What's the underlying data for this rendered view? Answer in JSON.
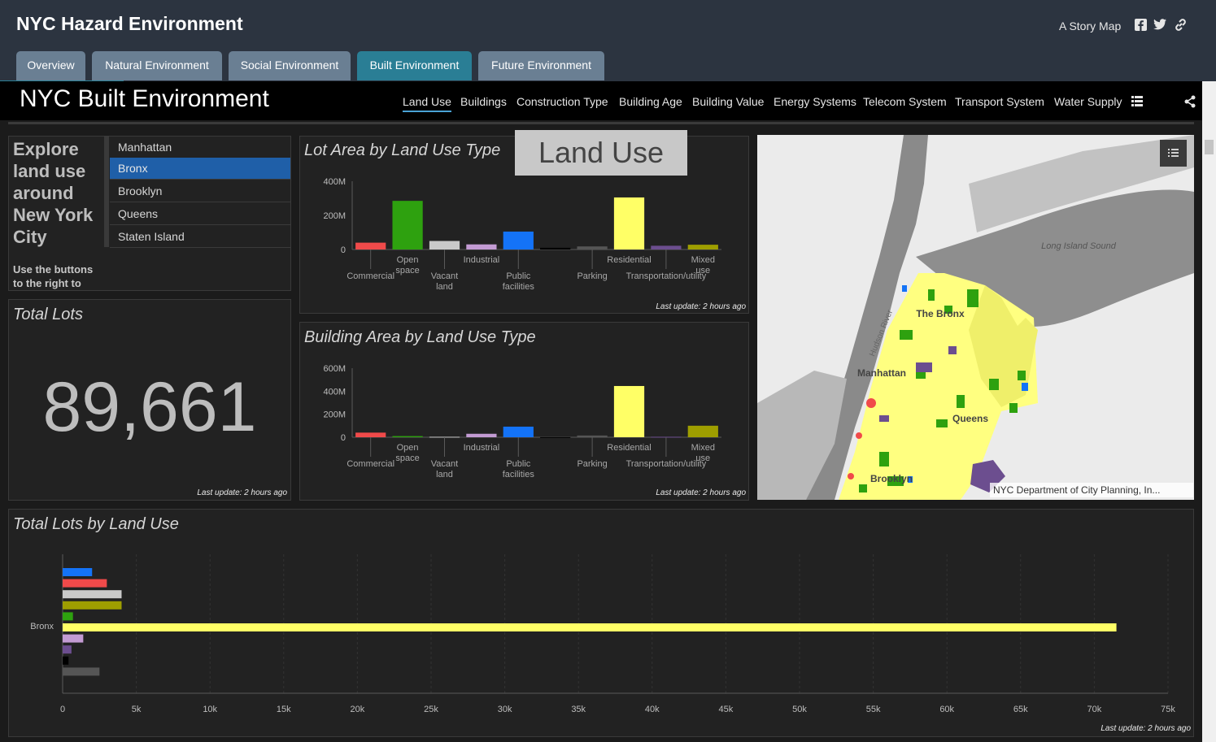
{
  "header": {
    "title": "NYC Hazard Environment",
    "story_label": "A Story Map",
    "icons": [
      "facebook-icon",
      "twitter-icon",
      "link-icon"
    ]
  },
  "tabs": [
    {
      "label": "Overview",
      "active": false
    },
    {
      "label": "Natural Environment",
      "active": false
    },
    {
      "label": "Social Environment",
      "active": false
    },
    {
      "label": "Built Environment",
      "active": true
    },
    {
      "label": "Future Environment",
      "active": false
    }
  ],
  "dashboard": {
    "title": "NYC Built Environment",
    "nav": [
      "Land Use",
      "Buildings",
      "Construction Type",
      "Building Age",
      "Building Value",
      "Energy Systems",
      "Telecom System",
      "Transport System",
      "Water Supply"
    ],
    "active_nav": "Land Use"
  },
  "intro": {
    "heading": "Explore land use around New York City",
    "body": "Use the buttons to the right to"
  },
  "boroughs": {
    "items": [
      "Manhattan",
      "Bronx",
      "Brooklyn",
      "Queens",
      "Staten Island"
    ],
    "selected": "Bronx"
  },
  "total_lots": {
    "title": "Total Lots",
    "value": "89,661",
    "last_update": "Last update: 2 hours ago"
  },
  "overlay_label": "Land Use",
  "map": {
    "labels": [
      "Long Island Sound",
      "The Bronx",
      "Hudson River",
      "Manhattan",
      "Queens",
      "Brooklyn"
    ],
    "attribution": "NYC Department of City Planning, In..."
  },
  "chart_data": [
    {
      "type": "bar",
      "title": "Lot Area by Land Use Type",
      "categories": [
        "Commercial",
        "Open space",
        "Vacant land",
        "Industrial",
        "Public facilities",
        "",
        "Parking",
        "Residential",
        "Transportation/utility",
        "Mixed use"
      ],
      "colors": [
        "#f04a4a",
        "#2ea10f",
        "#c9c9c9",
        "#c39bd3",
        "#1473f7",
        "#000000",
        "#555555",
        "#ffff66",
        "#6c4e8f",
        "#9e9e00"
      ],
      "values": [
        40000000,
        285000000,
        50000000,
        30000000,
        105000000,
        10000000,
        18000000,
        305000000,
        22000000,
        28000000
      ],
      "ylim": [
        0,
        400000000
      ],
      "yticks": [
        "0",
        "200M",
        "400M"
      ],
      "last_update": "Last update: 2 hours ago"
    },
    {
      "type": "bar",
      "title": "Building Area by Land Use Type",
      "categories": [
        "Commercial",
        "Open space",
        "Vacant land",
        "Industrial",
        "Public facilities",
        "",
        "Parking",
        "Residential",
        "Transportation/utility",
        "Mixed use"
      ],
      "colors": [
        "#f04a4a",
        "#2ea10f",
        "#c9c9c9",
        "#c39bd3",
        "#1473f7",
        "#000000",
        "#555555",
        "#ffff66",
        "#6c4e8f",
        "#9e9e00"
      ],
      "values": [
        40000000,
        10000000,
        4000000,
        30000000,
        92000000,
        1000000,
        15000000,
        445000000,
        4000000,
        100000000
      ],
      "ylim": [
        0,
        600000000
      ],
      "yticks": [
        "0",
        "200M",
        "400M",
        "600M"
      ],
      "last_update": "Last update: 2 hours ago"
    },
    {
      "type": "bar",
      "title": "Total Lots by Land Use",
      "orientation": "horizontal",
      "category": "Bronx",
      "colors": [
        "#1473f7",
        "#f04a4a",
        "#c9c9c9",
        "#9e9e00",
        "#2ea10f",
        "#ffff66",
        "#c39bd3",
        "#6c4e8f",
        "#000000",
        "#555555"
      ],
      "values": [
        2000,
        3000,
        4000,
        4000,
        700,
        71500,
        1400,
        600,
        400,
        2500
      ],
      "xlim": [
        0,
        75000
      ],
      "xticks": [
        "0",
        "5k",
        "10k",
        "15k",
        "20k",
        "25k",
        "30k",
        "35k",
        "40k",
        "45k",
        "50k",
        "55k",
        "60k",
        "65k",
        "70k",
        "75k"
      ],
      "last_update": "Last update: 2 hours ago"
    }
  ]
}
